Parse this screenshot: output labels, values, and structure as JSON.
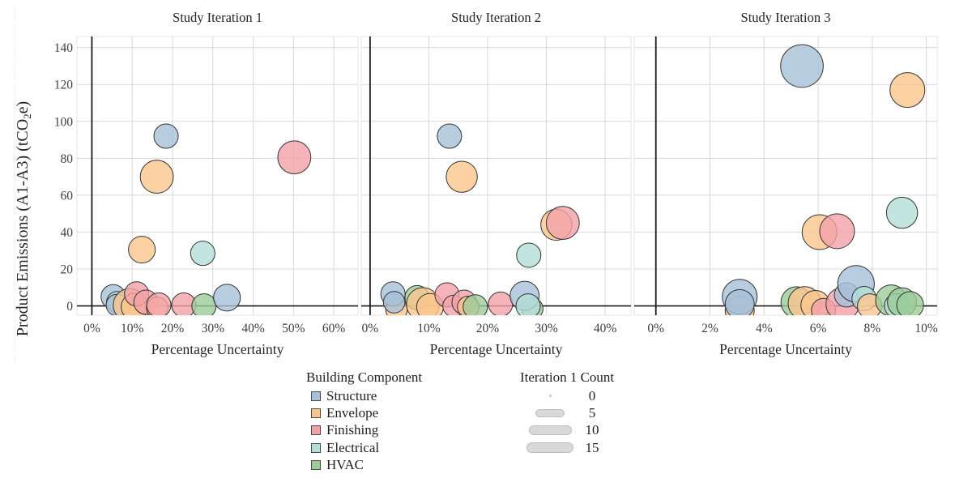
{
  "chart_data": {
    "type": "scatter",
    "subtype": "bubble",
    "ylabel": "Product Emissions (A1-A3) (tCO₂e)",
    "xlabel": "Percentage Uncertainty",
    "ylim": [
      -5,
      146
    ],
    "y_tick_values": [
      0,
      20,
      40,
      60,
      80,
      100,
      120,
      140
    ],
    "y_tick_labels": [
      "0",
      "20",
      "40",
      "60",
      "80",
      "100",
      "120",
      "140"
    ],
    "grid": "on",
    "series": [
      {
        "name": "Structure",
        "color": "#a8c0d8"
      },
      {
        "name": "Envelope",
        "color": "#fbc68d"
      },
      {
        "name": "Finishing",
        "color": "#f2a1a7"
      },
      {
        "name": "Electrical",
        "color": "#b4ded8"
      },
      {
        "name": "HVAC",
        "color": "#9ccc9a"
      }
    ],
    "legend": {
      "component_title": "Building Component",
      "size_title": "Iteration 1 Count",
      "sizes": [
        {
          "label": "0",
          "n": 0
        },
        {
          "label": "5",
          "n": 5
        },
        {
          "label": "10",
          "n": 10
        },
        {
          "label": "15",
          "n": 15
        }
      ],
      "size_glyph_color": "#d9d9d9",
      "size_glyph_border": "#bdbdbd"
    },
    "panels": [
      {
        "title": "Study Iteration 1",
        "xlim": [
          -3.7,
          66
        ],
        "x_tick_values": [
          0,
          10,
          20,
          30,
          40,
          50,
          60
        ],
        "x_tick_labels": [
          "0%",
          "10%",
          "20%",
          "30%",
          "40%",
          "50%",
          "60%"
        ],
        "points": [
          {
            "c": "Structure",
            "x": 18.4,
            "y": 92,
            "n": 4
          },
          {
            "c": "Envelope",
            "x": 16.1,
            "y": 70,
            "n": 8
          },
          {
            "c": "Envelope",
            "x": 12.4,
            "y": 30.5,
            "n": 5
          },
          {
            "c": "Electrical",
            "x": 27.5,
            "y": 28.5,
            "n": 4
          },
          {
            "c": "Finishing",
            "x": 50.2,
            "y": 80.5,
            "n": 8
          },
          {
            "c": "Envelope",
            "x": 7.8,
            "y": -1.5,
            "n": 3
          },
          {
            "c": "Structure",
            "x": 5.3,
            "y": 5,
            "n": 4
          },
          {
            "c": "Electrical",
            "x": 6.3,
            "y": 2,
            "n": 3
          },
          {
            "c": "Structure",
            "x": 6.2,
            "y": 0.5,
            "n": 3
          },
          {
            "c": "Envelope",
            "x": 12.2,
            "y": -2,
            "n": 4
          },
          {
            "c": "Envelope",
            "x": 9.4,
            "y": 0.5,
            "n": 8
          },
          {
            "c": "Envelope",
            "x": 10.6,
            "y": -0.5,
            "n": 5
          },
          {
            "c": "Finishing",
            "x": 11.1,
            "y": 6.5,
            "n": 4
          },
          {
            "c": "Finishing",
            "x": 13.4,
            "y": 2,
            "n": 4
          },
          {
            "c": "Envelope",
            "x": 16.2,
            "y": -1,
            "n": 3
          },
          {
            "c": "Finishing",
            "x": 16.6,
            "y": 0.5,
            "n": 4
          },
          {
            "c": "Finishing",
            "x": 22.8,
            "y": 0.5,
            "n": 4
          },
          {
            "c": "HVAC",
            "x": 27.8,
            "y": 0,
            "n": 4
          },
          {
            "c": "Structure",
            "x": 33.5,
            "y": 4.5,
            "n": 5
          }
        ]
      },
      {
        "title": "Study Iteration 2",
        "xlim": [
          -1.5,
          44.4
        ],
        "x_tick_values": [
          0,
          10,
          20,
          30,
          40
        ],
        "x_tick_labels": [
          "0%",
          "10%",
          "20%",
          "30%",
          "40%"
        ],
        "points": [
          {
            "c": "Structure",
            "x": 13.5,
            "y": 92,
            "n": 4
          },
          {
            "c": "Envelope",
            "x": 15.6,
            "y": 70,
            "n": 7
          },
          {
            "c": "Electrical",
            "x": 27.0,
            "y": 27.5,
            "n": 4
          },
          {
            "c": "Envelope",
            "x": 31.7,
            "y": 44,
            "n": 7
          },
          {
            "c": "Finishing",
            "x": 32.8,
            "y": 45,
            "n": 8
          },
          {
            "c": "Envelope",
            "x": 4.5,
            "y": -2,
            "n": 3
          },
          {
            "c": "Structure",
            "x": 3.9,
            "y": 6.5,
            "n": 4
          },
          {
            "c": "Structure",
            "x": 4.1,
            "y": 2,
            "n": 3
          },
          {
            "c": "HVAC",
            "x": 8.0,
            "y": 4.5,
            "n": 4
          },
          {
            "c": "Envelope",
            "x": 9.0,
            "y": 1,
            "n": 8
          },
          {
            "c": "Envelope",
            "x": 10.2,
            "y": -0.5,
            "n": 5
          },
          {
            "c": "Finishing",
            "x": 13.1,
            "y": 6,
            "n": 4
          },
          {
            "c": "Finishing",
            "x": 14.2,
            "y": 0,
            "n": 3
          },
          {
            "c": "Finishing",
            "x": 16.0,
            "y": 2,
            "n": 4
          },
          {
            "c": "Envelope",
            "x": 16.7,
            "y": -0.5,
            "n": 3
          },
          {
            "c": "HVAC",
            "x": 17.9,
            "y": -0.5,
            "n": 4
          },
          {
            "c": "Finishing",
            "x": 22.2,
            "y": 1,
            "n": 4
          },
          {
            "c": "HVAC",
            "x": 27.6,
            "y": -1.5,
            "n": 3
          },
          {
            "c": "Structure",
            "x": 26.3,
            "y": 5.5,
            "n": 6
          },
          {
            "c": "Electrical",
            "x": 26.9,
            "y": 0,
            "n": 4
          }
        ]
      },
      {
        "title": "Study Iteration 3",
        "xlim": [
          -0.8,
          10.4
        ],
        "x_tick_values": [
          0,
          2,
          4,
          6,
          8,
          10
        ],
        "x_tick_labels": [
          "0%",
          "2%",
          "4%",
          "6%",
          "8%",
          "10%"
        ],
        "points": [
          {
            "c": "Structure",
            "x": 5.4,
            "y": 130,
            "n": 14
          },
          {
            "c": "Envelope",
            "x": 9.3,
            "y": 117,
            "n": 9
          },
          {
            "c": "Envelope",
            "x": 6.05,
            "y": 40,
            "n": 9
          },
          {
            "c": "Finishing",
            "x": 6.7,
            "y": 40.5,
            "n": 9
          },
          {
            "c": "Electrical",
            "x": 9.1,
            "y": 50.5,
            "n": 7
          },
          {
            "c": "Envelope",
            "x": 3.1,
            "y": -2.5,
            "n": 6
          },
          {
            "c": "Structure",
            "x": 3.1,
            "y": 5,
            "n": 9
          },
          {
            "c": "Structure",
            "x": 3.1,
            "y": 1,
            "n": 6
          },
          {
            "c": "HVAC",
            "x": 5.2,
            "y": 2,
            "n": 7
          },
          {
            "c": "Envelope",
            "x": 5.5,
            "y": 1.5,
            "n": 8
          },
          {
            "c": "Envelope",
            "x": 5.9,
            "y": 0.5,
            "n": 6
          },
          {
            "c": "Finishing",
            "x": 6.2,
            "y": -2.5,
            "n": 4
          },
          {
            "c": "Finishing",
            "x": 6.9,
            "y": 1,
            "n": 8
          },
          {
            "c": "Structure",
            "x": 7.05,
            "y": 6,
            "n": 4
          },
          {
            "c": "Structure",
            "x": 7.4,
            "y": 12,
            "n": 10
          },
          {
            "c": "Electrical",
            "x": 7.7,
            "y": 4,
            "n": 4
          },
          {
            "c": "Envelope",
            "x": 7.9,
            "y": 0,
            "n": 4
          },
          {
            "c": "HVAC",
            "x": 8.7,
            "y": 3,
            "n": 7
          },
          {
            "c": "Electrical",
            "x": 8.9,
            "y": 0,
            "n": 4
          },
          {
            "c": "HVAC",
            "x": 9.1,
            "y": 2,
            "n": 6
          },
          {
            "c": "HVAC",
            "x": 9.4,
            "y": 0.5,
            "n": 5
          }
        ]
      }
    ],
    "style": {
      "grid_color": "#d8d8d8",
      "panel_border_color": "#e6e6e6",
      "zero_line_color": "#1a1a1a",
      "bubble_stroke": "#333333",
      "tick_text_color": "#3d3d3d",
      "title_text_color": "#262626"
    }
  }
}
